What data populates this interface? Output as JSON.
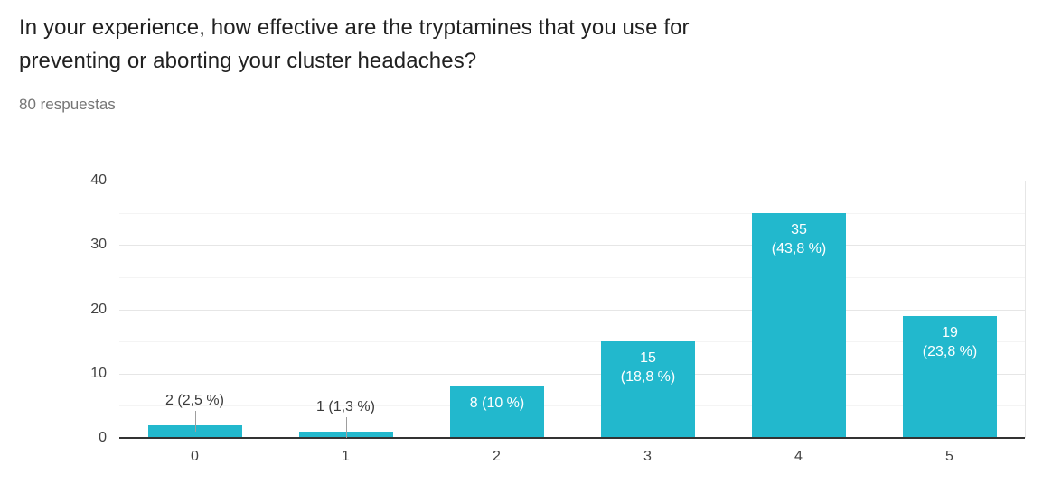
{
  "header": {
    "title_line1": "In your experience, how effective are the tryptamines that you use for",
    "title_line2": "preventing or aborting your cluster headaches?",
    "responses_count": "80 respuestas"
  },
  "colors": {
    "bar": "#22b8cd",
    "axis_line": "#333333",
    "grid_major": "#e6e6e6",
    "grid_minor": "#f4f4f4",
    "title_text": "#212121",
    "subtitle_text": "#757575",
    "tick_text": "#424242",
    "annotation_outside_text": "#3b3b3b",
    "annotation_inside_text": "#ffffff",
    "stem": "#9e9e9e"
  },
  "chart_data": {
    "type": "bar",
    "title": "",
    "xlabel": "",
    "ylabel": "",
    "categories": [
      "0",
      "1",
      "2",
      "3",
      "4",
      "5"
    ],
    "values": [
      2,
      1,
      8,
      15,
      35,
      19
    ],
    "labels": [
      "2 (2,5 %)",
      "1 (1,3 %)",
      "8 (10 %)",
      "15 (18,8 %)",
      "35 (43,8 %)",
      "19 (23,8 %)"
    ],
    "label_lines": [
      [
        "2 (2,5 %)"
      ],
      [
        "1 (1,3 %)"
      ],
      [
        "8 (10 %)"
      ],
      [
        "15",
        "(18,8 %)"
      ],
      [
        "35",
        "(43,8 %)"
      ],
      [
        "19",
        "(23,8 %)"
      ]
    ],
    "label_position": [
      "outside",
      "outside",
      "inside",
      "inside",
      "inside",
      "inside"
    ],
    "total_responses": 80,
    "ylim": [
      0,
      40
    ],
    "yticks": [
      0,
      10,
      20,
      30,
      40
    ],
    "minor_gridlines": [
      5,
      15,
      25,
      35
    ],
    "grid": true,
    "legend_position": "none"
  }
}
